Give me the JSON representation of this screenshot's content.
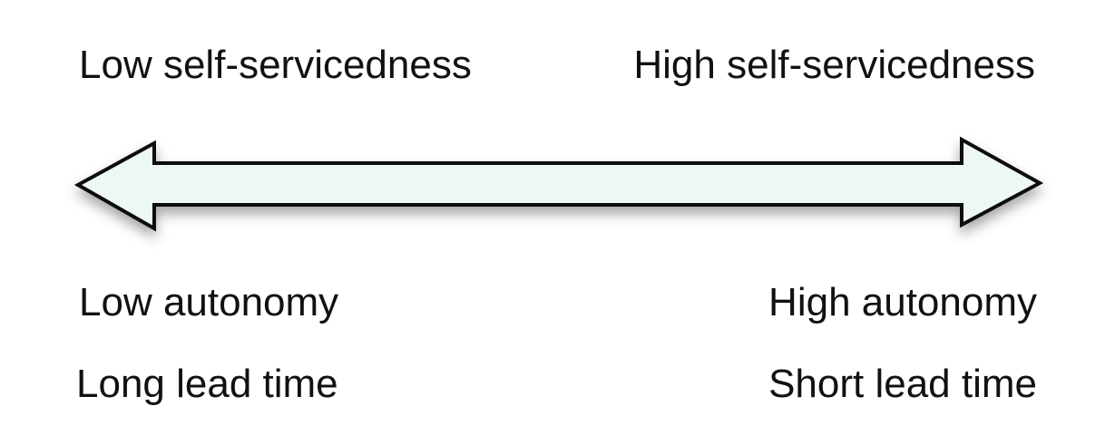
{
  "diagram": {
    "left_top": "Low self-servicedness",
    "right_top": "High self-servicedness",
    "left_bottom_1": "Low autonomy",
    "left_bottom_2": "Long lead time",
    "right_bottom_1": "High autonomy",
    "right_bottom_2": "Short lead time"
  },
  "colors": {
    "arrow_fill": "#EEF8F2",
    "arrow_stroke": "#111111",
    "text": "#111111"
  }
}
